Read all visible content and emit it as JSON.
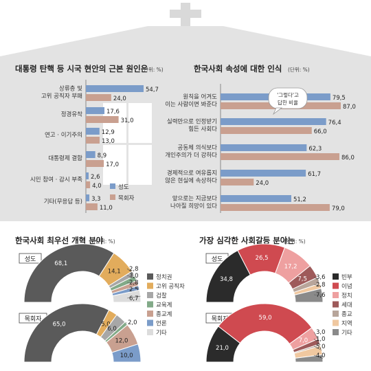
{
  "colors": {
    "seongdo": "#7b9cc9",
    "mokhoeja": "#c9a090",
    "bg_top": "#d4d4d4",
    "axis": "#8a8a8a"
  },
  "chart_data": [
    {
      "id": "root-cause",
      "type": "bar",
      "title": "대통령 탄핵 등 시국 현안의 근본 원인은",
      "unit": "(단위: %)",
      "categories": [
        [
          "상류층 및",
          "고위 공직자 부패"
        ],
        [
          "정경유착"
        ],
        [
          "연고 · 이기주의"
        ],
        [
          "대통령제 결함"
        ],
        [
          "시민 참여 · 감시 부족"
        ],
        [
          "기타(무응답 등)"
        ]
      ],
      "series": [
        {
          "name": "성도",
          "values": [
            54.7,
            17.6,
            12.9,
            8.9,
            2.6,
            3.3
          ]
        },
        {
          "name": "목회자",
          "values": [
            24.0,
            31.0,
            13.0,
            17.0,
            4.0,
            11.0
          ]
        }
      ],
      "labels": [
        [
          "54,7",
          "24,0"
        ],
        [
          "17,6",
          "31,0"
        ],
        [
          "12,9",
          "13,0"
        ],
        [
          "8,9",
          "17,0"
        ],
        [
          "2,6",
          "4,0"
        ],
        [
          "3,3",
          "11,0"
        ]
      ],
      "legend": [
        "성도",
        "목회자"
      ],
      "xlim": [
        0,
        60
      ]
    },
    {
      "id": "society-perception",
      "type": "bar",
      "title": "한국사회 속성에 대한 인식",
      "unit": "(단위: %)",
      "annotation": [
        "'그렇다'고",
        "답한 비율"
      ],
      "categories": [
        [
          "원칙을 어겨도",
          "이는 사람이면 봐준다"
        ],
        [
          "실력만으로 인정받기",
          "힘든 사회다"
        ],
        [
          "공동체 의식보다",
          "개인주의가 더 강하다"
        ],
        [
          "경제적으로 여유롭지",
          "않은 현실에 속상하다"
        ],
        [
          "앞으로는 지금보다",
          "나아질 희망이 있다"
        ]
      ],
      "series": [
        {
          "name": "성도",
          "values": [
            79.5,
            76.4,
            62.3,
            61.7,
            51.2
          ]
        },
        {
          "name": "목회자",
          "values": [
            87.0,
            66.0,
            86.0,
            24.0,
            79.0
          ]
        }
      ],
      "labels": [
        [
          "79,5",
          "87,0"
        ],
        [
          "76,4",
          "66,0"
        ],
        [
          "62,3",
          "86,0"
        ],
        [
          "61,7",
          "24,0"
        ],
        [
          "51,2",
          "79,0"
        ]
      ],
      "xlim": [
        0,
        90
      ]
    },
    {
      "id": "reform-priority",
      "type": "pie",
      "title": "한국사회 최우선 개혁 분야",
      "unit": "(단위: %)",
      "legend": [
        "정치권",
        "고위 공직자",
        "검찰",
        "교육계",
        "종교계",
        "언론",
        "기타"
      ],
      "legend_colors": [
        "#5a5a5a",
        "#e2ac5c",
        "#a7a7a7",
        "#82aa88",
        "#c9a090",
        "#7b9cc9",
        "#dcdcdc"
      ],
      "groups": [
        {
          "name": "성도",
          "values": [
            68.1,
            14.1,
            2.8,
            3.0,
            2.8,
            2.5,
            6.7
          ],
          "labels": [
            "68,1",
            "14,1",
            "2,8",
            "3,0",
            "2,8",
            "2,5",
            "6,7"
          ]
        },
        {
          "name": "목회자",
          "values": [
            65.0,
            5.0,
            6.0,
            2.0,
            12.0,
            10.0,
            0
          ],
          "labels": [
            "65,0",
            "5,0",
            "6,0",
            "2,0",
            "12,0",
            "10,0",
            ""
          ]
        }
      ]
    },
    {
      "id": "conflict-area",
      "type": "pie",
      "title": "가장 심각한 사회갈등 분야는",
      "unit": "(단위: %)",
      "legend": [
        "빈부",
        "이념",
        "정치",
        "세대",
        "종교",
        "지역",
        "기타"
      ],
      "legend_colors": [
        "#2b2b2b",
        "#cf4a50",
        "#eea0a0",
        "#9e5a5a",
        "#b8a59a",
        "#f0c8a0",
        "#8a8a8a"
      ],
      "groups": [
        {
          "name": "성도",
          "values": [
            34.8,
            26.5,
            17.2,
            7.5,
            3.6,
            2.8,
            7.6
          ],
          "labels": [
            "34,8",
            "26,5",
            "17,2",
            "7,5",
            "3,6",
            "2,8",
            "7,6"
          ]
        },
        {
          "name": "목회자",
          "values": [
            21.0,
            59.0,
            7.0,
            3.0,
            1.0,
            5.0,
            4.0
          ],
          "labels": [
            "21,0",
            "59,0",
            "7,0",
            "3,0",
            "1,0",
            "5,0",
            "4,0"
          ]
        }
      ]
    }
  ]
}
